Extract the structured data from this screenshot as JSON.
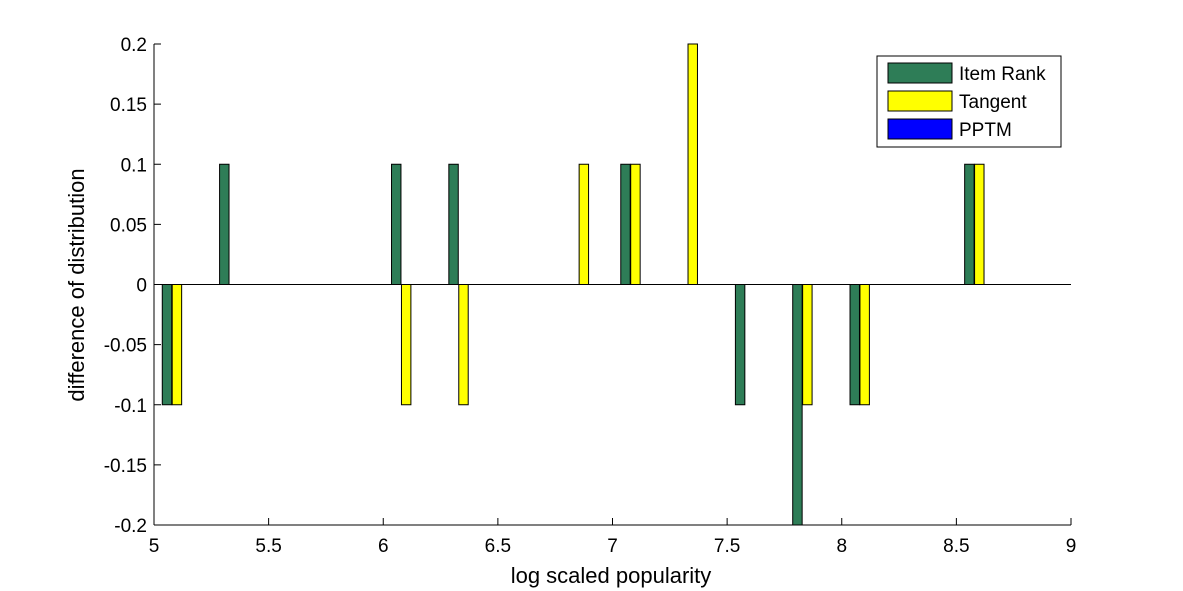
{
  "chart_data": {
    "type": "bar",
    "xlabel": "log scaled popularity",
    "ylabel": "difference of distribution",
    "xlim": [
      5,
      9
    ],
    "ylim": [
      -0.2,
      0.2
    ],
    "xticks": [
      "5",
      "5.5",
      "6",
      "6.5",
      "7",
      "7.5",
      "8",
      "8.5",
      "9"
    ],
    "yticks": [
      "0.2",
      "0.15",
      "0.1",
      "0.05",
      "0",
      "-0.05",
      "-0.1",
      "-0.15",
      "-0.2"
    ],
    "x": [
      5.1,
      5.35,
      6.1,
      6.35,
      6.875,
      7.1,
      7.35,
      7.6,
      7.85,
      8.1,
      8.6
    ],
    "series": [
      {
        "name": "Item Rank",
        "color": "#2e7d57",
        "values": [
          -0.1,
          0.1,
          0.1,
          0.1,
          0,
          0.1,
          0,
          -0.1,
          -0.2,
          -0.1,
          0.1
        ]
      },
      {
        "name": "Tangent",
        "color": "#ffff00",
        "values": [
          -0.1,
          0,
          -0.1,
          -0.1,
          0.1,
          0.1,
          0.2,
          0,
          -0.1,
          -0.1,
          0.1
        ]
      },
      {
        "name": "PPTM",
        "color": "#0000ff",
        "values": [
          0,
          0,
          0,
          0,
          0,
          0,
          0,
          0,
          0,
          0,
          0
        ]
      }
    ],
    "legend_position": "top-right",
    "grid": false
  }
}
